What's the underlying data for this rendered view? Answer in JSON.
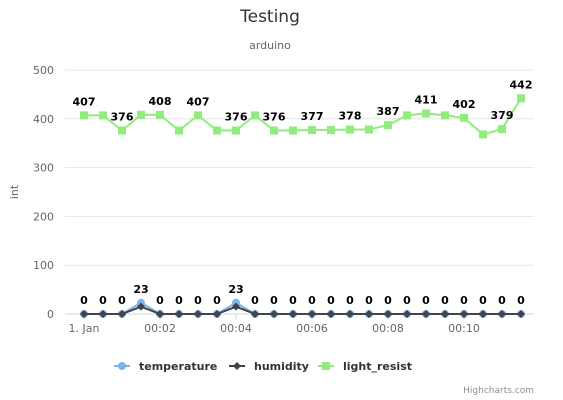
{
  "chart_data": {
    "type": "line",
    "title": "Testing",
    "subtitle": "arduino",
    "ylabel": "int",
    "xlabel": "",
    "ylim": [
      0,
      500
    ],
    "y_ticks": [
      0,
      100,
      200,
      300,
      400,
      500
    ],
    "x_start_minutes": 0,
    "x_step_seconds": 30,
    "x_tick_labels": [
      "1. Jan",
      "00:02",
      "00:04",
      "00:06",
      "00:08",
      "00:10"
    ],
    "x_tick_minutes": [
      0,
      2,
      4,
      6,
      8,
      10
    ],
    "grid": true,
    "legend_position": "bottom",
    "series": [
      {
        "name": "temperature",
        "color": "#7cb5ec",
        "marker": "circle",
        "values": [
          0,
          0,
          0,
          23,
          0,
          0,
          0,
          0,
          23,
          0,
          0,
          0,
          0,
          0,
          0,
          0,
          0,
          0,
          0,
          0,
          0,
          0,
          0,
          0
        ],
        "labels": [
          "0",
          "0",
          "0",
          "23",
          "0",
          "0",
          "0",
          "0",
          "23",
          "0",
          "0",
          "0",
          "0",
          "0",
          "0",
          "0",
          "0",
          "0",
          "0",
          "0",
          "0",
          "0",
          "0",
          "0"
        ]
      },
      {
        "name": "humidity",
        "color": "#434348",
        "marker": "diamond",
        "values": [
          0,
          0,
          0,
          15,
          0,
          0,
          0,
          0,
          15,
          0,
          0,
          0,
          0,
          0,
          0,
          0,
          0,
          0,
          0,
          0,
          0,
          0,
          0,
          0
        ],
        "labels": []
      },
      {
        "name": "light_resist",
        "color": "#90ed7d",
        "marker": "square",
        "values": [
          407,
          407,
          376,
          408,
          408,
          376,
          407,
          376,
          376,
          407,
          376,
          376,
          377,
          377,
          378,
          378,
          387,
          407,
          411,
          407,
          402,
          368,
          379,
          442
        ],
        "labels": [
          "407",
          "",
          "376",
          "",
          "408",
          "",
          "407",
          "",
          "376",
          "",
          "376",
          "",
          "377",
          "",
          "378",
          "",
          "387",
          "",
          "411",
          "",
          "402",
          "",
          "379",
          "442"
        ]
      }
    ]
  },
  "credits": "Highcharts.com"
}
